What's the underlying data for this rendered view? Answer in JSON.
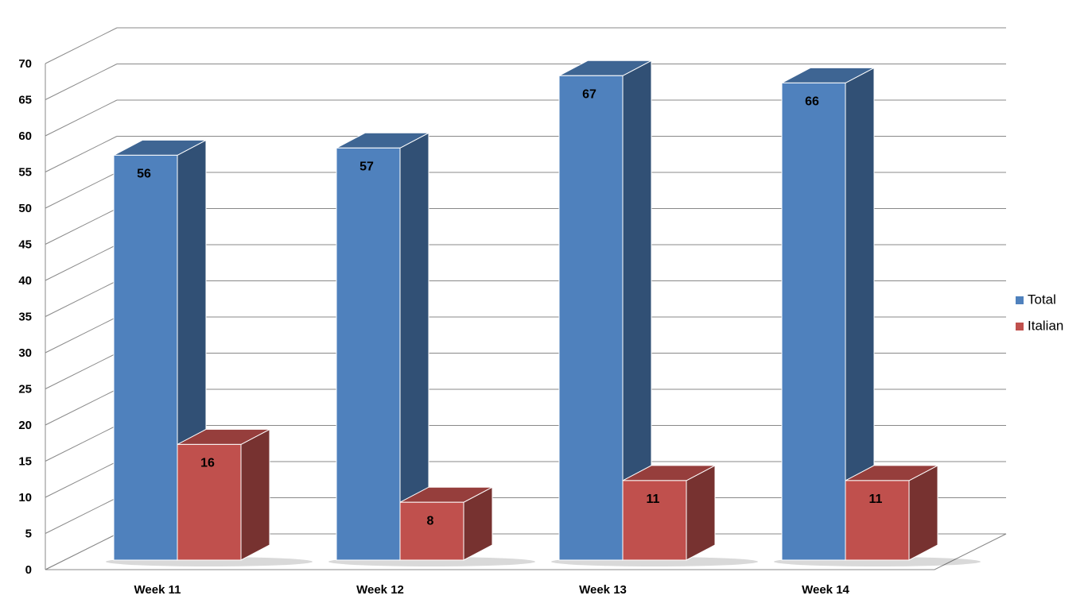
{
  "chart_data": {
    "type": "bar3d",
    "categories": [
      "Week 11",
      "Week 12",
      "Week 13",
      "Week 14"
    ],
    "series": [
      {
        "name": "Total",
        "color": "#4f81bd",
        "values": [
          56,
          57,
          67,
          66
        ]
      },
      {
        "name": "Italian",
        "color": "#c0504d",
        "values": [
          16,
          8,
          11,
          11
        ]
      }
    ],
    "ylim": [
      0,
      70
    ],
    "yticks": [
      0,
      5,
      10,
      15,
      20,
      25,
      30,
      35,
      40,
      45,
      50,
      55,
      60,
      65,
      70
    ],
    "grid": true,
    "legend": "right"
  }
}
